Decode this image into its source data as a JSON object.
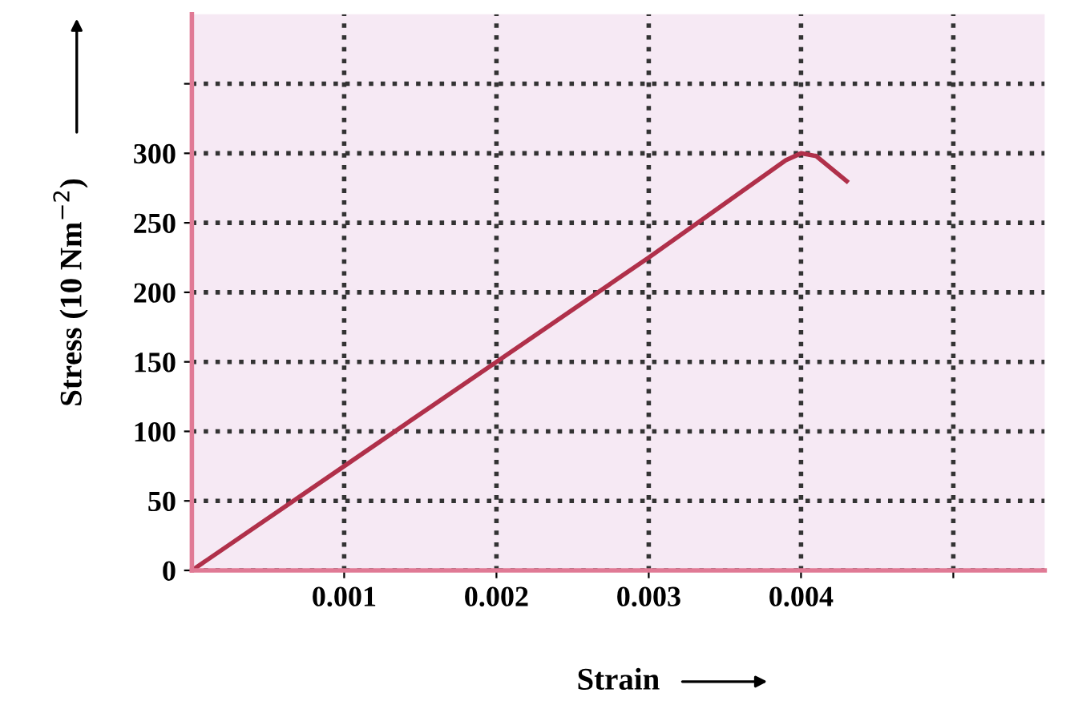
{
  "chart_data": {
    "type": "line",
    "xlabel": "Strain",
    "ylabel": "Stress (10 Nm$^{−2}$)",
    "x": [
      0,
      0.001,
      0.002,
      0.003,
      0.0039,
      0.004,
      0.0041,
      0.0043
    ],
    "series": [
      {
        "color": "#b0304a",
        "values": [
          0,
          75,
          150,
          225,
          295,
          300,
          298,
          280
        ]
      }
    ],
    "xlim": [
      0,
      0.0056
    ],
    "ylim": [
      0,
      400
    ],
    "xticks": [
      0.001,
      0.002,
      0.003,
      0.004,
      {
        "value": 0.005,
        "label": null
      }
    ],
    "yticks": [
      0,
      50,
      100,
      150,
      200,
      250,
      300,
      {
        "value": 350,
        "label": null
      }
    ],
    "grid": true,
    "marker": "none",
    "line_style": "solid",
    "legend": false
  }
}
